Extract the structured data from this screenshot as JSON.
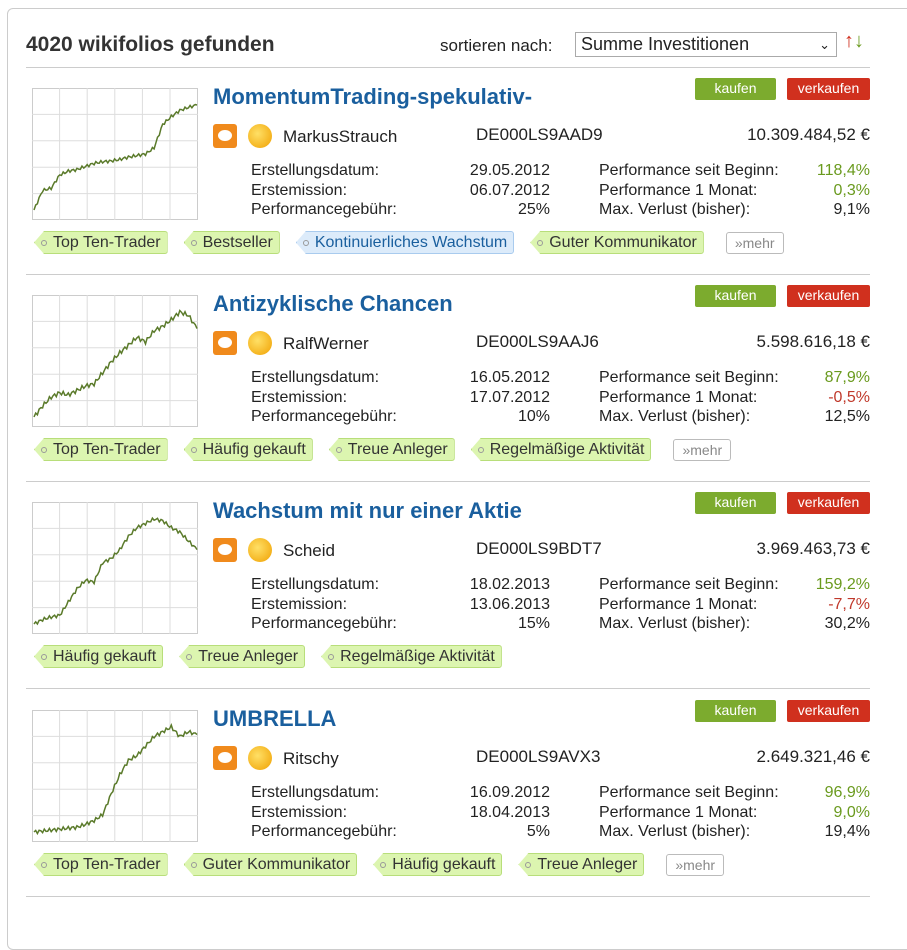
{
  "header": {
    "title": "4020 wikifolios gefunden",
    "sort_label": "sortieren nach:",
    "sort_value": "Summe Investitionen"
  },
  "labels": {
    "buy": "kaufen",
    "sell": "verkaufen",
    "created": "Erstellungsdatum:",
    "emission": "Erstemission:",
    "fee": "Performancegebühr:",
    "perf_total": "Performance seit Beginn:",
    "perf_month": "Performance 1 Monat:",
    "max_loss": "Max. Verlust (bisher):",
    "more": "»mehr"
  },
  "colors": {
    "buy": "#7cab2e",
    "sell": "#d0301e",
    "title": "#1a5f9e",
    "positive": "#6a9a1e",
    "negative": "#c0392b"
  },
  "items": [
    {
      "title": "MomentumTrading-spekulativ-",
      "trader": "MarkusStrauch",
      "isin": "DE000LS9AAD9",
      "value": "10.309.484,52 €",
      "created": "29.05.2012",
      "emission": "06.07.2012",
      "fee": "25%",
      "perf_total": "118,4%",
      "perf_month": "0,3%",
      "max_loss": "9,1%",
      "month_sign": "pos",
      "tags": [
        {
          "label": "Top Ten-Trader"
        },
        {
          "label": "Bestseller"
        },
        {
          "label": "Kontinuierliches Wachstum",
          "blue": true
        },
        {
          "label": "Guter Kommunikator"
        }
      ],
      "more": true,
      "sparkline": [
        100,
        125,
        128,
        145,
        150,
        152,
        156,
        160,
        162,
        163,
        165,
        168,
        170,
        172,
        180,
        210,
        220,
        228,
        232,
        235
      ]
    },
    {
      "title": "Antizyklische Chancen",
      "trader": "RalfWerner",
      "isin": "DE000LS9AAJ6",
      "value": "5.598.616,18 €",
      "created": "16.05.2012",
      "emission": "17.07.2012",
      "fee": "10%",
      "perf_total": "87,9%",
      "perf_month": "-0,5%",
      "max_loss": "12,5%",
      "month_sign": "neg",
      "tags": [
        {
          "label": "Top Ten-Trader"
        },
        {
          "label": "Häufig gekauft"
        },
        {
          "label": "Treue Anleger"
        },
        {
          "label": "Regelmäßige Aktivität"
        }
      ],
      "more": true,
      "sparkline": [
        100,
        110,
        118,
        122,
        120,
        124,
        128,
        130,
        140,
        150,
        158,
        165,
        172,
        168,
        178,
        182,
        188,
        195,
        192,
        180
      ]
    },
    {
      "title": "Wachstum mit nur einer Aktie",
      "trader": "Scheid",
      "isin": "DE000LS9BDT7",
      "value": "3.969.463,73 €",
      "created": "18.02.2013",
      "emission": "13.06.2013",
      "fee": "15%",
      "perf_total": "159,2%",
      "perf_month": "-7,7%",
      "max_loss": "30,2%",
      "month_sign": "neg",
      "tags": [
        {
          "label": "Häufig gekauft"
        },
        {
          "label": "Treue Anleger"
        },
        {
          "label": "Regelmäßige Aktivität"
        }
      ],
      "more": false,
      "sparkline": [
        100,
        105,
        108,
        110,
        125,
        140,
        150,
        148,
        170,
        175,
        185,
        200,
        210,
        215,
        220,
        218,
        210,
        205,
        195,
        185
      ]
    },
    {
      "title": "UMBRELLA",
      "trader": "Ritschy",
      "isin": "DE000LS9AVX3",
      "value": "2.649.321,46 €",
      "created": "16.09.2012",
      "emission": "18.04.2013",
      "fee": "5%",
      "perf_total": "96,9%",
      "perf_month": "9,0%",
      "max_loss": "19,4%",
      "month_sign": "pos",
      "tags": [
        {
          "label": "Top Ten-Trader"
        },
        {
          "label": "Guter Kommunikator"
        },
        {
          "label": "Häufig gekauft"
        },
        {
          "label": "Treue Anleger"
        }
      ],
      "more": true,
      "sparkline": [
        100,
        101,
        102,
        103,
        104,
        105,
        108,
        112,
        118,
        140,
        160,
        175,
        180,
        190,
        200,
        205,
        210,
        200,
        205,
        202
      ]
    }
  ]
}
